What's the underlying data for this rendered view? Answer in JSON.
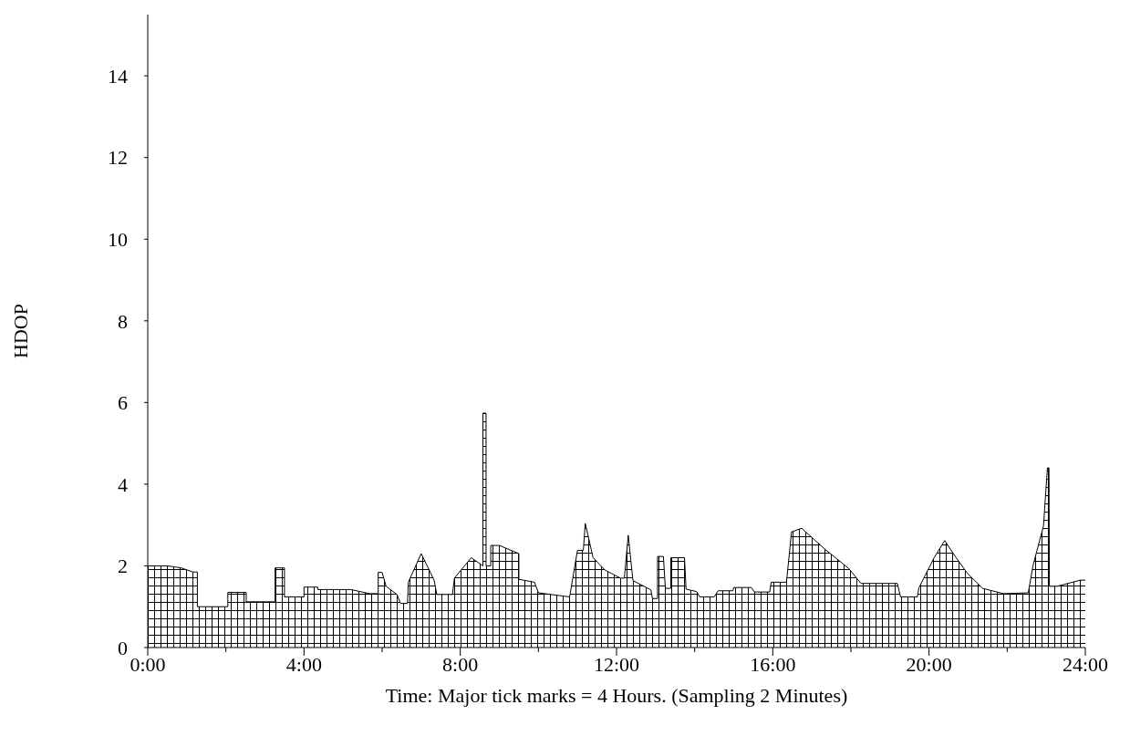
{
  "chart_data": {
    "type": "area",
    "xlabel": "Time: Major tick marks = 4 Hours. (Sampling 2 Minutes)",
    "ylabel": "HDOP",
    "xlim": [
      0,
      24
    ],
    "ylim": [
      0,
      15.5
    ],
    "xticks": [
      {
        "value": 0,
        "label": "0:00"
      },
      {
        "value": 2,
        "label": null
      },
      {
        "value": 4,
        "label": "4:00"
      },
      {
        "value": 6,
        "label": null
      },
      {
        "value": 8,
        "label": "8:00"
      },
      {
        "value": 10,
        "label": null
      },
      {
        "value": 12,
        "label": "12:00"
      },
      {
        "value": 14,
        "label": null
      },
      {
        "value": 16,
        "label": "16:00"
      },
      {
        "value": 18,
        "label": null
      },
      {
        "value": 20,
        "label": "20:00"
      },
      {
        "value": 22,
        "label": null
      },
      {
        "value": 24,
        "label": "24:00"
      }
    ],
    "yticks": [
      0,
      2,
      4,
      6,
      8,
      10,
      12,
      14
    ],
    "grid": false,
    "series": [
      {
        "color": "#000000",
        "x": [
          0,
          0.5,
          0.86,
          1.15,
          1.27,
          1.27,
          2.05,
          2.05,
          2.52,
          2.52,
          3.26,
          3.26,
          3.5,
          3.5,
          4.0,
          4.0,
          4.35,
          4.35,
          5.2,
          5.68,
          5.9,
          5.9,
          6.0,
          6.1,
          6.38,
          6.47,
          6.65,
          6.67,
          7.0,
          7.33,
          7.4,
          7.8,
          7.85,
          8.28,
          8.58,
          8.58,
          8.66,
          8.66,
          8.78,
          8.78,
          9.0,
          9.5,
          9.5,
          9.9,
          10.0,
          10.8,
          11.0,
          11.15,
          11.2,
          11.4,
          11.7,
          12.1,
          12.2,
          12.3,
          12.42,
          12.88,
          12.92,
          13.05,
          13.05,
          13.2,
          13.25,
          13.39,
          13.39,
          13.74,
          13.78,
          14.05,
          14.13,
          14.5,
          14.6,
          14.98,
          15.0,
          15.45,
          15.53,
          15.92,
          15.96,
          16.35,
          16.48,
          16.74,
          17.32,
          17.94,
          18.18,
          18.26,
          19.19,
          19.27,
          19.7,
          19.74,
          20.13,
          20.4,
          20.67,
          20.98,
          21.37,
          21.9,
          22.54,
          22.66,
          22.93,
          23.03,
          23.07,
          23.08,
          23.28,
          23.87,
          24
        ],
        "values": [
          2.0,
          2.0,
          1.95,
          1.85,
          1.85,
          1.0,
          1.0,
          1.35,
          1.35,
          1.12,
          1.12,
          1.95,
          1.95,
          1.24,
          1.24,
          1.48,
          1.48,
          1.42,
          1.42,
          1.32,
          1.32,
          1.84,
          1.84,
          1.5,
          1.3,
          1.08,
          1.08,
          1.6,
          2.3,
          1.65,
          1.3,
          1.3,
          1.7,
          2.2,
          2.0,
          5.74,
          5.74,
          2.0,
          2.0,
          2.5,
          2.5,
          2.3,
          1.67,
          1.6,
          1.34,
          1.24,
          2.38,
          2.38,
          3.04,
          2.2,
          1.9,
          1.7,
          1.7,
          2.75,
          1.64,
          1.41,
          1.2,
          1.2,
          2.23,
          2.23,
          1.45,
          1.45,
          2.2,
          2.2,
          1.43,
          1.37,
          1.24,
          1.24,
          1.39,
          1.39,
          1.47,
          1.47,
          1.36,
          1.36,
          1.6,
          1.6,
          2.83,
          2.92,
          2.42,
          1.94,
          1.66,
          1.57,
          1.57,
          1.24,
          1.24,
          1.46,
          2.2,
          2.62,
          2.23,
          1.82,
          1.45,
          1.32,
          1.34,
          2.0,
          2.98,
          4.4,
          4.4,
          1.5,
          1.5,
          1.65,
          1.65
        ]
      }
    ]
  }
}
